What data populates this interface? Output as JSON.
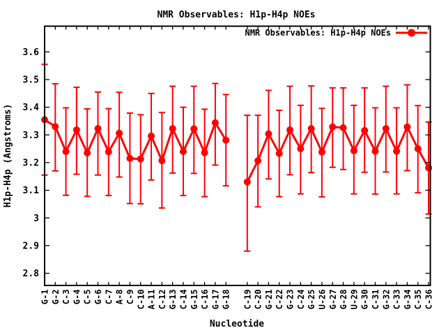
{
  "window": {
    "background": "#ffffff"
  },
  "chart_data": {
    "type": "line",
    "subtype": "scatter-with-yerrorbars",
    "title": "NMR Observables: H1p-H4p NOEs",
    "xlabel": "Nucleotide",
    "ylabel": "H1p-H4p (Angstroms)",
    "ylim": [
      2.756,
      3.693
    ],
    "grid": false,
    "legend": {
      "position": "top-right-inside",
      "label": "NMR Observables: H1p-H4p NOEs",
      "marker": "filled-circle-on-line"
    },
    "series_color": "#ff0000",
    "axis_color": "#000000",
    "total_slots": 37,
    "gap_slot": 18,
    "yticks": [
      {
        "value": 2.8,
        "label": "2.8"
      },
      {
        "value": 2.9,
        "label": "2.9"
      },
      {
        "value": 3.0,
        "label": "3"
      },
      {
        "value": 3.1,
        "label": "3.1"
      },
      {
        "value": 3.2,
        "label": "3.2"
      },
      {
        "value": 3.3,
        "label": "3.3"
      },
      {
        "value": 3.4,
        "label": "3.4"
      },
      {
        "value": 3.5,
        "label": "3.5"
      },
      {
        "value": 3.6,
        "label": "3.6"
      }
    ],
    "points": [
      {
        "label": "G-1",
        "slot": 0,
        "value": 3.355,
        "low": 3.155,
        "high": 3.555
      },
      {
        "label": "G-2",
        "slot": 1,
        "value": 3.33,
        "low": 3.17,
        "high": 3.485
      },
      {
        "label": "C-3",
        "slot": 2,
        "value": 3.24,
        "low": 3.082,
        "high": 3.398
      },
      {
        "label": "G-4",
        "slot": 3,
        "value": 3.318,
        "low": 3.158,
        "high": 3.472
      },
      {
        "label": "C-5",
        "slot": 4,
        "value": 3.235,
        "low": 3.078,
        "high": 3.394
      },
      {
        "label": "G-6",
        "slot": 5,
        "value": 3.323,
        "low": 3.155,
        "high": 3.455
      },
      {
        "label": "C-7",
        "slot": 6,
        "value": 3.239,
        "low": 3.081,
        "high": 3.395
      },
      {
        "label": "A-8",
        "slot": 7,
        "value": 3.306,
        "low": 3.148,
        "high": 3.454
      },
      {
        "label": "C-9",
        "slot": 8,
        "value": 3.215,
        "low": 3.052,
        "high": 3.379
      },
      {
        "label": "C-10",
        "slot": 9,
        "value": 3.213,
        "low": 3.051,
        "high": 3.373
      },
      {
        "label": "A-11",
        "slot": 10,
        "value": 3.296,
        "low": 3.137,
        "high": 3.45
      },
      {
        "label": "C-12",
        "slot": 11,
        "value": 3.207,
        "low": 3.036,
        "high": 3.381
      },
      {
        "label": "G-13",
        "slot": 12,
        "value": 3.323,
        "low": 3.162,
        "high": 3.476
      },
      {
        "label": "C-14",
        "slot": 13,
        "value": 3.24,
        "low": 3.081,
        "high": 3.4
      },
      {
        "label": "G-15",
        "slot": 14,
        "value": 3.322,
        "low": 3.161,
        "high": 3.476
      },
      {
        "label": "C-16",
        "slot": 15,
        "value": 3.236,
        "low": 3.077,
        "high": 3.393
      },
      {
        "label": "G-17",
        "slot": 16,
        "value": 3.344,
        "low": 3.191,
        "high": 3.486
      },
      {
        "label": "G-18",
        "slot": 17,
        "value": 3.281,
        "low": 3.116,
        "high": 3.446
      },
      {
        "label": "C-19",
        "slot": 19,
        "value": 3.13,
        "low": 2.88,
        "high": 3.371
      },
      {
        "label": "C-20",
        "slot": 20,
        "value": 3.207,
        "low": 3.04,
        "high": 3.371
      },
      {
        "label": "G-21",
        "slot": 21,
        "value": 3.304,
        "low": 3.141,
        "high": 3.461
      },
      {
        "label": "C-22",
        "slot": 22,
        "value": 3.233,
        "low": 3.077,
        "high": 3.389
      },
      {
        "label": "G-23",
        "slot": 23,
        "value": 3.318,
        "low": 3.156,
        "high": 3.476
      },
      {
        "label": "C-24",
        "slot": 24,
        "value": 3.25,
        "low": 3.087,
        "high": 3.407
      },
      {
        "label": "G-25",
        "slot": 25,
        "value": 3.323,
        "low": 3.164,
        "high": 3.477
      },
      {
        "label": "U-26",
        "slot": 26,
        "value": 3.238,
        "low": 3.076,
        "high": 3.396
      },
      {
        "label": "G-27",
        "slot": 27,
        "value": 3.329,
        "low": 3.183,
        "high": 3.47
      },
      {
        "label": "G-28",
        "slot": 28,
        "value": 3.326,
        "low": 3.175,
        "high": 3.47
      },
      {
        "label": "U-29",
        "slot": 29,
        "value": 3.243,
        "low": 3.087,
        "high": 3.407
      },
      {
        "label": "G-30",
        "slot": 30,
        "value": 3.316,
        "low": 3.165,
        "high": 3.47
      },
      {
        "label": "C-31",
        "slot": 31,
        "value": 3.241,
        "low": 3.086,
        "high": 3.398
      },
      {
        "label": "G-32",
        "slot": 32,
        "value": 3.323,
        "low": 3.166,
        "high": 3.476
      },
      {
        "label": "C-33",
        "slot": 33,
        "value": 3.241,
        "low": 3.087,
        "high": 3.398
      },
      {
        "label": "G-34",
        "slot": 34,
        "value": 3.329,
        "low": 3.171,
        "high": 3.481
      },
      {
        "label": "C-35",
        "slot": 35,
        "value": 3.25,
        "low": 3.091,
        "high": 3.406
      },
      {
        "label": "C-36",
        "slot": 36,
        "value": 3.181,
        "low": 3.014,
        "high": 3.347
      }
    ]
  }
}
